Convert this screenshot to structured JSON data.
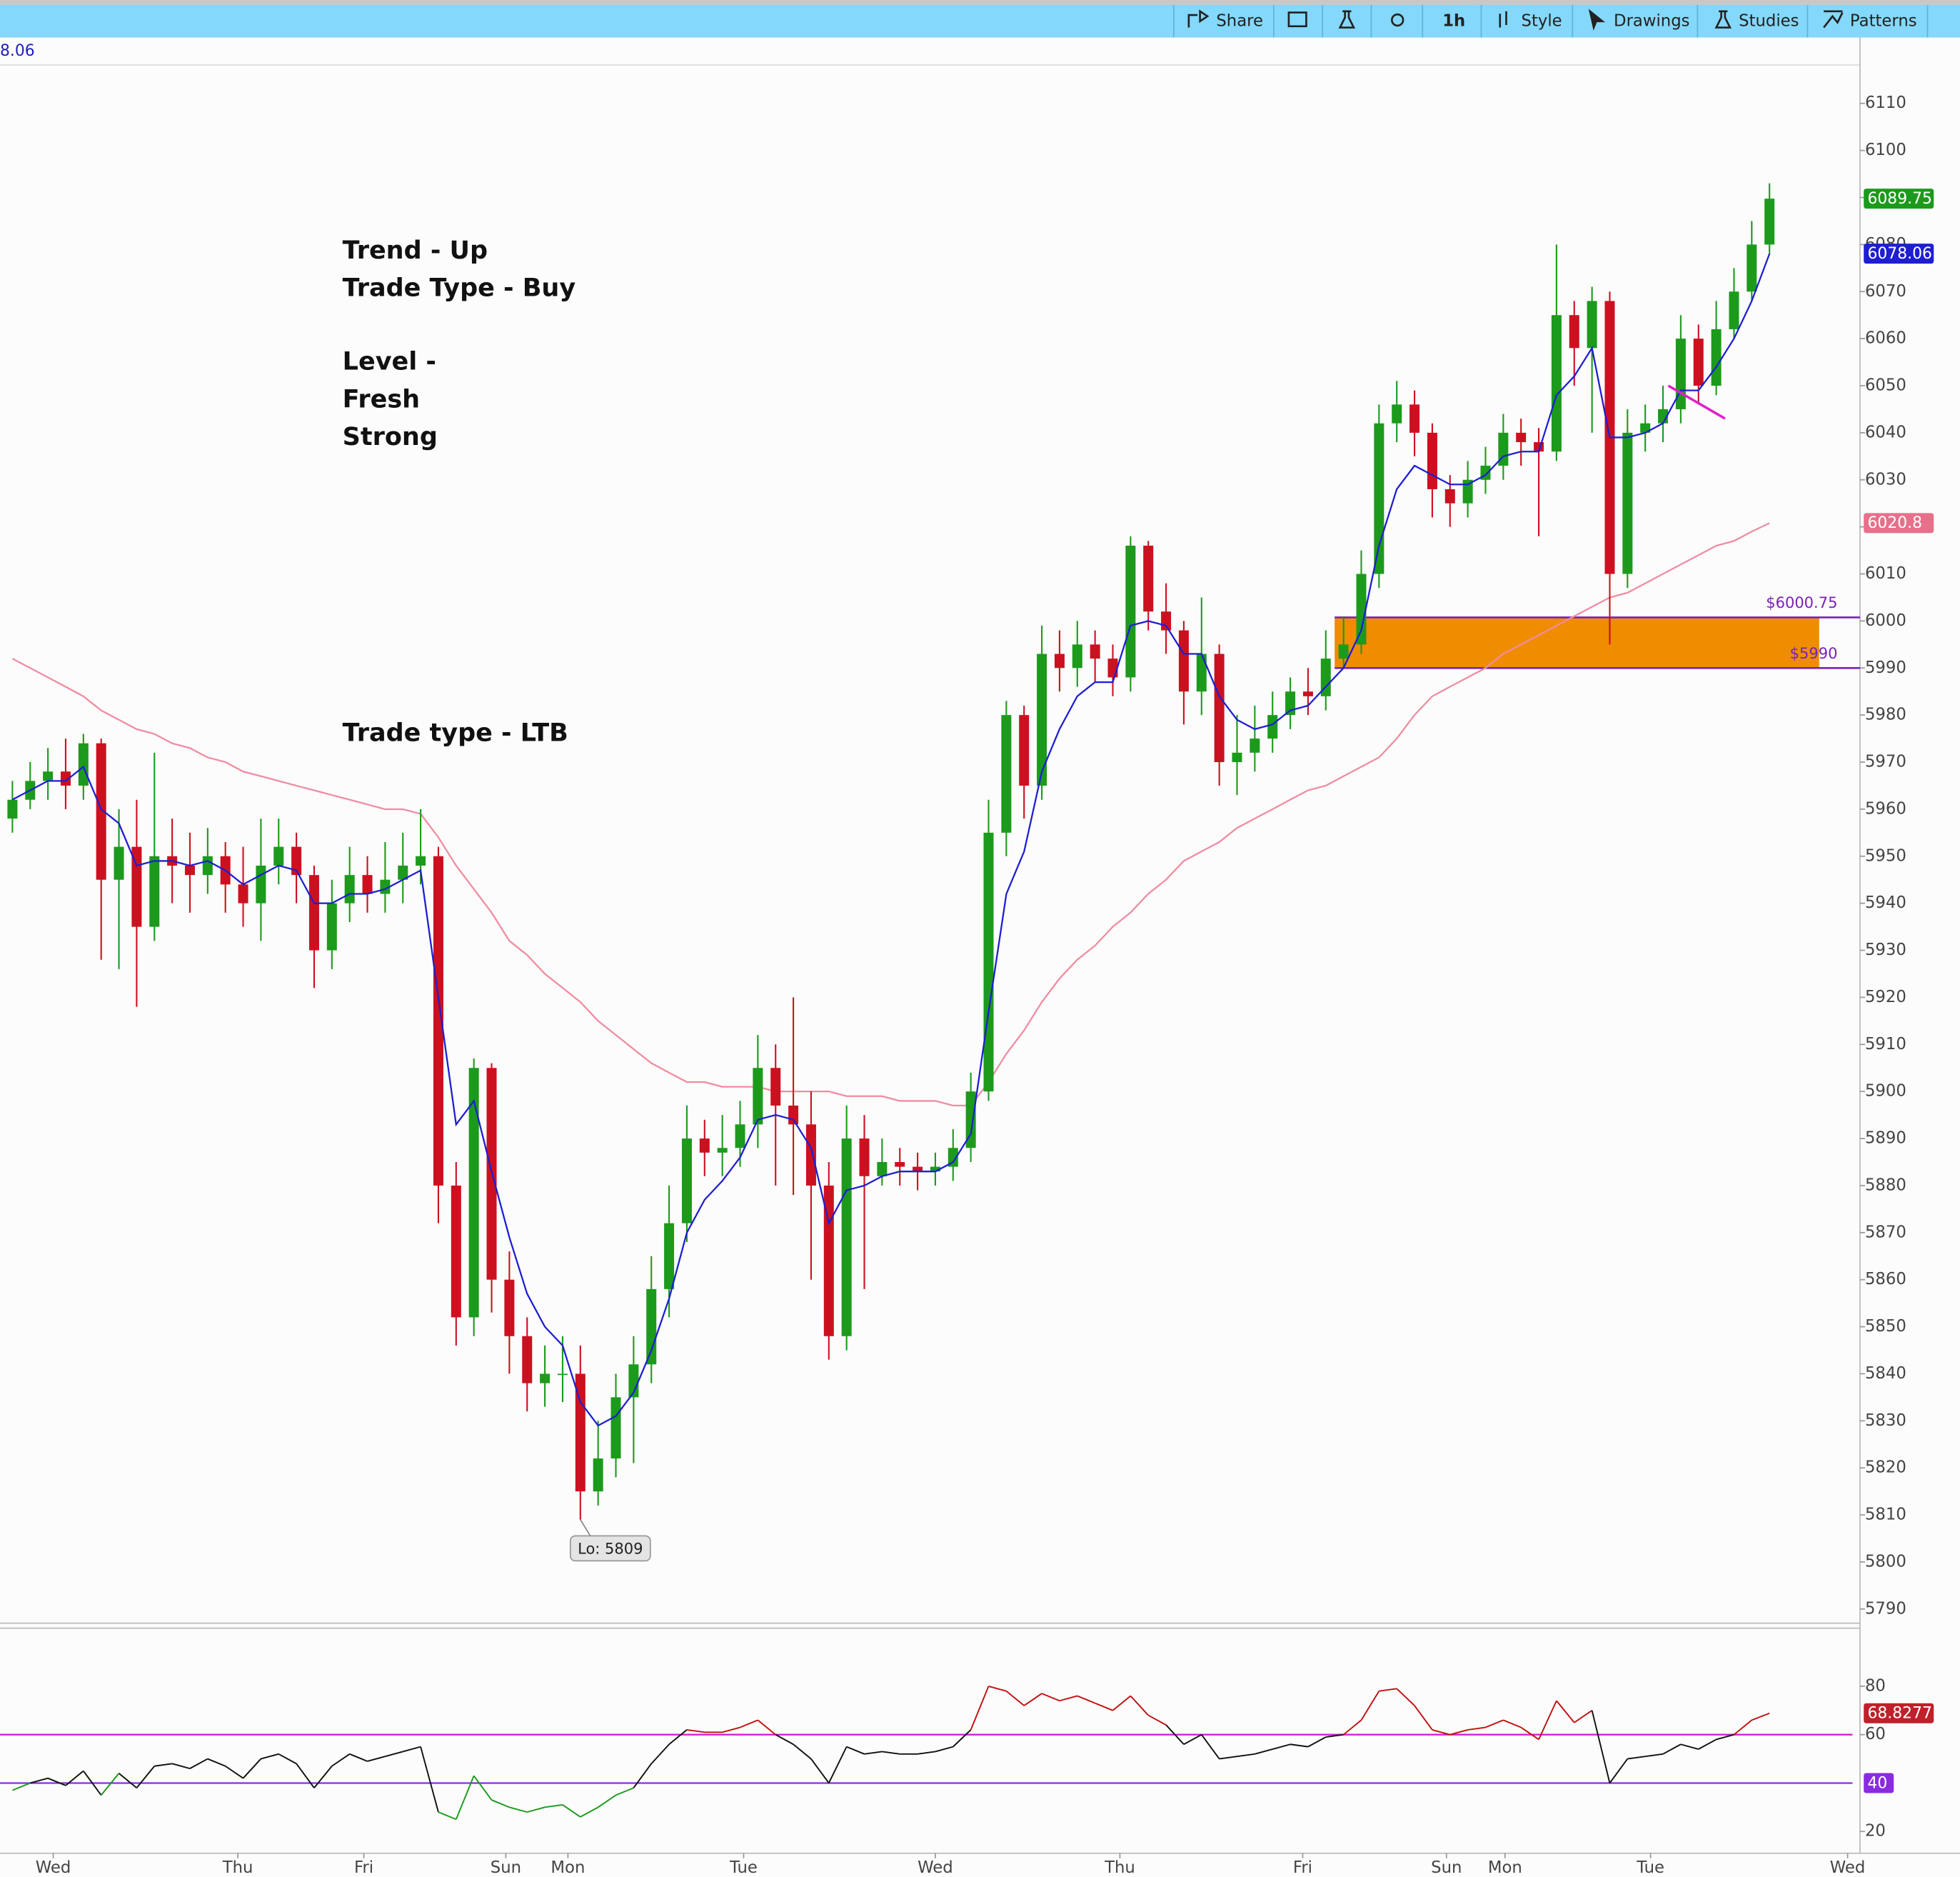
{
  "toolbar": {
    "items": [
      "Share",
      "1h",
      "Style",
      "Drawings",
      "Studies",
      "Patterns"
    ]
  },
  "readout": "8.06",
  "annotations": [
    "Trend - Up",
    "Trade Type - Buy",
    "Level -",
    "Fresh",
    "Strong",
    "Trade type - LTB"
  ],
  "chart_data": {
    "type": "candlestick",
    "up_color": "#1c9a1c",
    "down_color": "#cc1020",
    "xlim": [
      -0.7,
      104.1
    ],
    "xticks": [
      {
        "value": 2.3,
        "label": "Wed"
      },
      {
        "value": 12.7,
        "label": "Thu"
      },
      {
        "value": 19.8,
        "label": "Fri"
      },
      {
        "value": 27.8,
        "label": "Sun"
      },
      {
        "value": 31.3,
        "label": "Mon"
      },
      {
        "value": 41.2,
        "label": "Tue"
      },
      {
        "value": 52,
        "label": "Wed"
      },
      {
        "value": 62.4,
        "label": "Thu"
      },
      {
        "value": 72.7,
        "label": "Fri"
      },
      {
        "value": 80.8,
        "label": "Sun"
      },
      {
        "value": 84.1,
        "label": "Mon"
      },
      {
        "value": 92.3,
        "label": "Tue"
      },
      {
        "value": 103.4,
        "label": "Wed"
      }
    ],
    "ylim": [
      5787,
      6124
    ],
    "yticks": [
      5790,
      5800,
      5810,
      5820,
      5830,
      5840,
      5850,
      5860,
      5870,
      5880,
      5890,
      5900,
      5910,
      5920,
      5930,
      5940,
      5950,
      5960,
      5970,
      5980,
      5990,
      6000,
      6010,
      6020,
      6030,
      6040,
      6050,
      6060,
      6070,
      6080,
      6090,
      6100,
      6110
    ],
    "open": [
      5958,
      5962,
      5966,
      5968,
      5965,
      5974,
      5945,
      5952,
      5935,
      5950,
      5948,
      5946,
      5950,
      5944,
      5940,
      5948,
      5952,
      5946,
      5930,
      5940,
      5946,
      5942,
      5945,
      5948,
      5950,
      5880,
      5852,
      5905,
      5860,
      5848,
      5838,
      5840,
      5840,
      5815,
      5822,
      5835,
      5842,
      5858,
      5872,
      5890,
      5887,
      5888,
      5893,
      5905,
      5897,
      5893,
      5880,
      5848,
      5890,
      5882,
      5885,
      5884,
      5883,
      5884,
      5888,
      5900,
      5955,
      5980,
      5965,
      5993,
      5990,
      5995,
      5992,
      5988,
      6016,
      6002,
      5998,
      5985,
      5993,
      5970,
      5972,
      5975,
      5980,
      5985,
      5984,
      5992,
      5995,
      6010,
      6042,
      6046,
      6040,
      6028,
      6025,
      6030,
      6033,
      6040,
      6038,
      6036,
      6065,
      6058,
      6068,
      6010,
      6040,
      6042,
      6045,
      6060,
      6050,
      6062,
      6070,
      6080
    ],
    "high": [
      5966,
      5970,
      5973,
      5975,
      5976,
      5975,
      5960,
      5962,
      5972,
      5958,
      5955,
      5956,
      5953,
      5952,
      5958,
      5958,
      5955,
      5948,
      5945,
      5952,
      5950,
      5953,
      5955,
      5960,
      5952,
      5885,
      5907,
      5906,
      5866,
      5852,
      5846,
      5848,
      5846,
      5830,
      5840,
      5848,
      5865,
      5880,
      5897,
      5894,
      5895,
      5898,
      5912,
      5910,
      5920,
      5900,
      5885,
      5897,
      5895,
      5890,
      5888,
      5887,
      5887,
      5892,
      5904,
      5962,
      5983,
      5982,
      5999,
      5998,
      6000,
      5998,
      5995,
      6018,
      6017,
      6008,
      6000,
      6005,
      5995,
      5980,
      5982,
      5985,
      5988,
      5990,
      5998,
      6001,
      6015,
      6046,
      6051,
      6049,
      6042,
      6031,
      6034,
      6037,
      6044,
      6043,
      6041,
      6080,
      6068,
      6071,
      6070,
      6045,
      6046,
      6050,
      6065,
      6063,
      6068,
      6075,
      6085,
      6093
    ],
    "low": [
      5955,
      5960,
      5962,
      5960,
      5962,
      5928,
      5926,
      5918,
      5932,
      5940,
      5938,
      5942,
      5938,
      5935,
      5932,
      5944,
      5940,
      5922,
      5926,
      5936,
      5938,
      5938,
      5940,
      5944,
      5872,
      5846,
      5848,
      5853,
      5840,
      5832,
      5833,
      5834,
      5809,
      5812,
      5818,
      5821,
      5838,
      5852,
      5868,
      5882,
      5882,
      5884,
      5888,
      5880,
      5878,
      5860,
      5843,
      5845,
      5858,
      5880,
      5880,
      5879,
      5880,
      5881,
      5885,
      5898,
      5950,
      5958,
      5962,
      5985,
      5986,
      5987,
      5984,
      5985,
      5998,
      5993,
      5978,
      5980,
      5965,
      5963,
      5968,
      5972,
      5977,
      5980,
      5981,
      5990,
      5993,
      6007,
      6038,
      6035,
      6022,
      6020,
      6022,
      6027,
      6030,
      6033,
      6018,
      6034,
      6050,
      6040,
      5995,
      6007,
      6036,
      6038,
      6042,
      6046,
      6048,
      6060,
      6068,
      6078
    ],
    "close": [
      5962,
      5966,
      5968,
      5965,
      5974,
      5945,
      5952,
      5935,
      5950,
      5948,
      5946,
      5950,
      5944,
      5940,
      5948,
      5952,
      5946,
      5930,
      5940,
      5946,
      5942,
      5945,
      5948,
      5950,
      5880,
      5852,
      5905,
      5860,
      5848,
      5838,
      5840,
      5840,
      5815,
      5822,
      5835,
      5842,
      5858,
      5872,
      5890,
      5887,
      5888,
      5893,
      5905,
      5897,
      5893,
      5880,
      5848,
      5890,
      5882,
      5885,
      5884,
      5883,
      5884,
      5888,
      5900,
      5955,
      5980,
      5965,
      5993,
      5990,
      5995,
      5992,
      5988,
      6016,
      6002,
      5998,
      5985,
      5993,
      5970,
      5972,
      5975,
      5980,
      5985,
      5984,
      5992,
      5995,
      6010,
      6042,
      6046,
      6040,
      6028,
      6025,
      6030,
      6033,
      6040,
      6038,
      6036,
      6065,
      6058,
      6068,
      6010,
      6040,
      6042,
      6045,
      6060,
      6050,
      6062,
      6070,
      6080,
      6089.75
    ],
    "series": [
      {
        "color": "#f08ca0",
        "values": [
          5992,
          5990,
          5988,
          5986,
          5984,
          5981,
          5979,
          5977,
          5976,
          5974,
          5973,
          5971,
          5970,
          5968,
          5967,
          5966,
          5965,
          5964,
          5963,
          5962,
          5961,
          5960,
          5960,
          5959,
          5954,
          5948,
          5943,
          5938,
          5932,
          5929,
          5925,
          5922,
          5919,
          5915,
          5912,
          5909,
          5906,
          5904,
          5902,
          5902,
          5901,
          5901,
          5901,
          5900,
          5900,
          5900,
          5900,
          5899,
          5899,
          5899,
          5898,
          5898,
          5898,
          5897,
          5897,
          5902,
          5908,
          5913,
          5919,
          5924,
          5928,
          5931,
          5935,
          5938,
          5942,
          5945,
          5949,
          5951,
          5953,
          5956,
          5958,
          5960,
          5962,
          5964,
          5965,
          5967,
          5969,
          5971,
          5975,
          5980,
          5984,
          5986,
          5988,
          5990,
          5993,
          5995,
          5997,
          5999,
          6001,
          6003,
          6005,
          6006,
          6008,
          6010,
          6012,
          6014,
          6016,
          6017,
          6019,
          6020.8
        ]
      },
      {
        "color": "#1e1ed2",
        "values": [
          5962,
          5964,
          5966,
          5966,
          5969,
          5960,
          5957,
          5948,
          5949,
          5949,
          5948,
          5949,
          5947,
          5944,
          5946,
          5948,
          5947,
          5940,
          5940,
          5942,
          5942,
          5943,
          5945,
          5947,
          5920,
          5893,
          5898,
          5883,
          5869,
          5857,
          5850,
          5846,
          5834,
          5829,
          5831,
          5836,
          5845,
          5856,
          5870,
          5877,
          5881,
          5886,
          5894,
          5895,
          5894,
          5888,
          5872,
          5879,
          5880,
          5882,
          5883,
          5883,
          5883,
          5885,
          5891,
          5917,
          5942,
          5951,
          5968,
          5977,
          5984,
          5987,
          5987,
          5999,
          6000,
          5999,
          5993,
          5993,
          5984,
          5979,
          5977,
          5978,
          5981,
          5982,
          5986,
          5990,
          5998,
          6016,
          6028,
          6033,
          6031,
          6029,
          6029,
          6031,
          6035,
          6036,
          6036,
          6048,
          6052,
          6058,
          6039,
          6039,
          6040,
          6042,
          6049,
          6049,
          6054,
          6060,
          6068,
          6078.06
        ]
      }
    ],
    "low_label": "Lo: 5809",
    "zone": {
      "x_start": 74.5,
      "x_end": 101.8,
      "top": 6000.75,
      "bottom": 5990,
      "top_label": "$6000.75",
      "bottom_label": "$5990",
      "color": "#f08c00",
      "line_color": "#7a22b8"
    },
    "trendline": {
      "x": [
        93.3,
        96.5
      ],
      "y": [
        6050,
        6043
      ],
      "color": "#e020c8"
    },
    "rsi": {
      "ylim": [
        11,
        104
      ],
      "yticks": [
        20,
        60,
        80
      ],
      "levels": [
        60,
        40
      ],
      "level_colors": [
        "#d020d0",
        "#8a2be2"
      ],
      "colors": {
        "high": "#c01010",
        "mid": "#111111",
        "low": "#1c9a1c"
      },
      "values": [
        37,
        40,
        42,
        39,
        45,
        35,
        44,
        38,
        47,
        48,
        46,
        50,
        47,
        42,
        50,
        52,
        48,
        38,
        47,
        52,
        49,
        51,
        53,
        55,
        28,
        25,
        43,
        33,
        30,
        28,
        30,
        31,
        26,
        30,
        35,
        38,
        48,
        56,
        62,
        61,
        61,
        63,
        66,
        60,
        56,
        50,
        40,
        55,
        52,
        53,
        52,
        52,
        53,
        55,
        62,
        80,
        78,
        72,
        77,
        74,
        76,
        73,
        70,
        76,
        68,
        64,
        56,
        60,
        50,
        51,
        52,
        54,
        56,
        55,
        59,
        60,
        66,
        78,
        79,
        72,
        62,
        60,
        62,
        63,
        66,
        63,
        58,
        74,
        65,
        70,
        40,
        50,
        51,
        52,
        56,
        54,
        58,
        60,
        66,
        68.8277
      ]
    }
  }
}
